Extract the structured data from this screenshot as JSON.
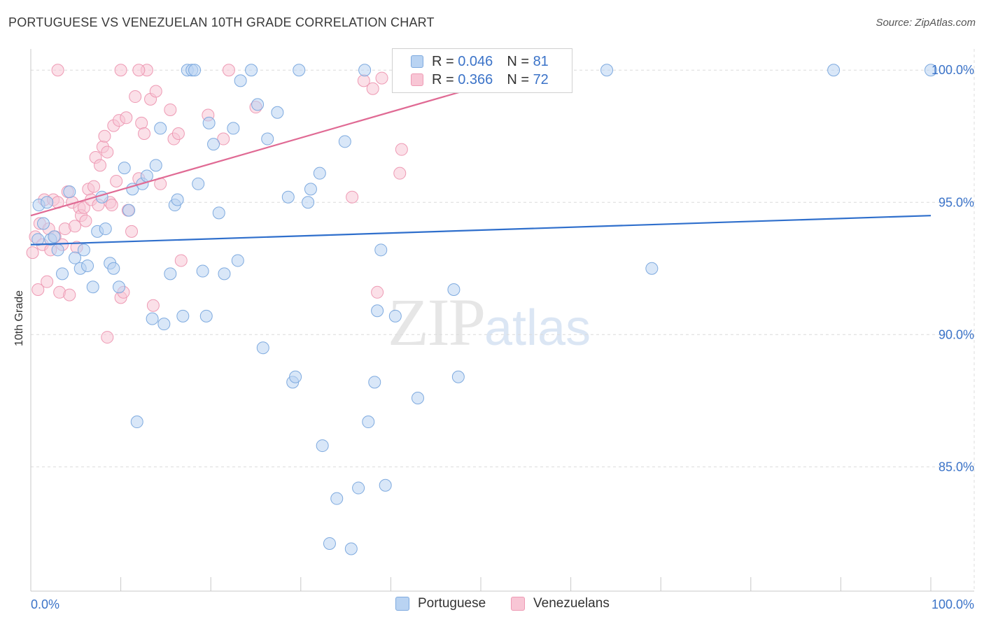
{
  "header": {
    "title": "PORTUGUESE VS VENEZUELAN 10TH GRADE CORRELATION CHART",
    "source": "Source: ZipAtlas.com"
  },
  "watermark": {
    "zip": "ZIP",
    "atlas": "atlas"
  },
  "legend": {
    "rows": [
      {
        "r_label": "R =",
        "r_value": "0.046",
        "n_label": "N =",
        "n_value": "81"
      },
      {
        "r_label": "R =",
        "r_value": "0.366",
        "n_label": "N =",
        "n_value": "72"
      }
    ],
    "bottom": [
      "Portuguese",
      "Venezuelans"
    ]
  },
  "colors": {
    "portuguese_fill": "#b9d3f2",
    "portuguese_stroke": "#7eaadf",
    "portuguese_line": "#2f6fcc",
    "venezuelan_fill": "#f8c6d5",
    "venezuelan_stroke": "#ee9ab4",
    "venezuelan_line": "#e06a94",
    "tick_label": "#3b73c8",
    "grid": "#dcdcdc"
  },
  "chart_data": {
    "type": "scatter",
    "title": "PORTUGUESE VS VENEZUELAN 10TH GRADE CORRELATION CHART",
    "xlabel": "",
    "ylabel": "10th Grade",
    "xlim": [
      0,
      100
    ],
    "ylim": [
      80.3,
      100.8
    ],
    "x_tick_labels": [
      "0.0%",
      "100.0%"
    ],
    "y_ticks": [
      85,
      90,
      95,
      100
    ],
    "y_tick_labels": [
      "85.0%",
      "90.0%",
      "95.0%",
      "100.0%"
    ],
    "grid": true,
    "series": [
      {
        "name": "Portuguese",
        "r": 0.046,
        "n": 81,
        "trend": {
          "x": [
            0,
            100
          ],
          "y": [
            93.4,
            94.5
          ]
        },
        "points": [
          [
            0.8,
            93.6
          ],
          [
            0.9,
            94.9
          ],
          [
            1.4,
            94.2
          ],
          [
            1.8,
            95.0
          ],
          [
            2.2,
            93.6
          ],
          [
            2.6,
            93.7
          ],
          [
            3.0,
            93.2
          ],
          [
            3.5,
            92.3
          ],
          [
            4.3,
            95.4
          ],
          [
            4.9,
            92.9
          ],
          [
            5.5,
            92.5
          ],
          [
            5.9,
            93.2
          ],
          [
            6.3,
            92.6
          ],
          [
            6.9,
            91.8
          ],
          [
            7.4,
            93.9
          ],
          [
            7.9,
            95.2
          ],
          [
            8.3,
            94.0
          ],
          [
            8.8,
            92.7
          ],
          [
            9.2,
            92.5
          ],
          [
            9.8,
            91.8
          ],
          [
            10.4,
            96.3
          ],
          [
            10.9,
            94.7
          ],
          [
            11.3,
            95.5
          ],
          [
            11.8,
            86.7
          ],
          [
            12.4,
            95.7
          ],
          [
            12.9,
            96.0
          ],
          [
            13.5,
            90.6
          ],
          [
            13.9,
            96.4
          ],
          [
            14.4,
            97.8
          ],
          [
            14.8,
            90.4
          ],
          [
            15.5,
            92.3
          ],
          [
            16.0,
            94.9
          ],
          [
            16.3,
            95.1
          ],
          [
            16.9,
            90.7
          ],
          [
            17.4,
            100.0
          ],
          [
            17.9,
            100.0
          ],
          [
            18.6,
            95.7
          ],
          [
            19.1,
            92.4
          ],
          [
            19.5,
            90.7
          ],
          [
            19.8,
            98.0
          ],
          [
            20.3,
            97.2
          ],
          [
            20.9,
            94.6
          ],
          [
            21.5,
            92.3
          ],
          [
            22.5,
            97.8
          ],
          [
            23.0,
            92.8
          ],
          [
            23.3,
            99.6
          ],
          [
            24.5,
            100.0
          ],
          [
            25.2,
            98.7
          ],
          [
            25.8,
            89.5
          ],
          [
            26.3,
            97.4
          ],
          [
            27.4,
            98.4
          ],
          [
            28.6,
            95.2
          ],
          [
            29.1,
            88.2
          ],
          [
            29.4,
            88.4
          ],
          [
            29.8,
            100.0
          ],
          [
            30.8,
            95.0
          ],
          [
            31.1,
            95.5
          ],
          [
            32.1,
            96.1
          ],
          [
            32.4,
            85.8
          ],
          [
            34.0,
            83.8
          ],
          [
            34.9,
            97.3
          ],
          [
            35.6,
            81.9
          ],
          [
            36.4,
            84.2
          ],
          [
            37.1,
            100.0
          ],
          [
            37.5,
            86.7
          ],
          [
            38.2,
            88.2
          ],
          [
            38.5,
            90.9
          ],
          [
            38.9,
            93.2
          ],
          [
            39.4,
            84.3
          ],
          [
            40.5,
            90.7
          ],
          [
            43.0,
            87.6
          ],
          [
            44.5,
            100.0
          ],
          [
            47.0,
            91.7
          ],
          [
            47.5,
            88.4
          ],
          [
            50.4,
            100.0
          ],
          [
            64.0,
            100.0
          ],
          [
            69.0,
            92.5
          ],
          [
            89.2,
            100.0
          ],
          [
            100.0,
            100.0
          ],
          [
            33.2,
            82.1
          ],
          [
            18.2,
            100.0
          ]
        ]
      },
      {
        "name": "Venezuelans",
        "r": 0.366,
        "n": 72,
        "trend": {
          "x": [
            0,
            49
          ],
          "y": [
            94.5,
            99.3
          ]
        },
        "points": [
          [
            0.2,
            93.1
          ],
          [
            0.5,
            93.7
          ],
          [
            0.8,
            91.7
          ],
          [
            1.0,
            94.2
          ],
          [
            1.3,
            93.4
          ],
          [
            1.5,
            95.1
          ],
          [
            1.8,
            92.0
          ],
          [
            2.0,
            94.0
          ],
          [
            2.2,
            93.2
          ],
          [
            2.5,
            95.1
          ],
          [
            2.7,
            93.7
          ],
          [
            3.0,
            95.0
          ],
          [
            3.2,
            91.6
          ],
          [
            3.5,
            93.4
          ],
          [
            3.8,
            94.0
          ],
          [
            4.1,
            95.4
          ],
          [
            4.3,
            91.5
          ],
          [
            4.6,
            95.0
          ],
          [
            4.9,
            94.1
          ],
          [
            5.1,
            93.3
          ],
          [
            5.4,
            94.8
          ],
          [
            5.6,
            94.5
          ],
          [
            5.9,
            94.8
          ],
          [
            6.1,
            94.3
          ],
          [
            6.4,
            95.5
          ],
          [
            6.7,
            95.1
          ],
          [
            7.0,
            95.6
          ],
          [
            7.2,
            96.7
          ],
          [
            7.5,
            94.9
          ],
          [
            7.7,
            96.4
          ],
          [
            8.0,
            97.1
          ],
          [
            8.2,
            97.5
          ],
          [
            8.5,
            96.9
          ],
          [
            8.8,
            95.0
          ],
          [
            9.0,
            94.9
          ],
          [
            9.2,
            97.9
          ],
          [
            9.5,
            95.8
          ],
          [
            9.8,
            98.1
          ],
          [
            10.0,
            91.4
          ],
          [
            10.3,
            91.6
          ],
          [
            10.6,
            98.2
          ],
          [
            10.8,
            94.7
          ],
          [
            11.2,
            93.9
          ],
          [
            11.6,
            99.0
          ],
          [
            12.0,
            95.9
          ],
          [
            12.3,
            98.0
          ],
          [
            12.6,
            97.6
          ],
          [
            12.9,
            100.0
          ],
          [
            13.3,
            98.9
          ],
          [
            13.6,
            91.1
          ],
          [
            13.9,
            99.2
          ],
          [
            14.4,
            95.7
          ],
          [
            15.5,
            98.5
          ],
          [
            15.9,
            97.4
          ],
          [
            16.4,
            97.6
          ],
          [
            16.7,
            92.8
          ],
          [
            19.7,
            98.3
          ],
          [
            21.4,
            97.4
          ],
          [
            22.0,
            100.0
          ],
          [
            25.0,
            98.6
          ],
          [
            35.7,
            95.2
          ],
          [
            37.0,
            99.6
          ],
          [
            38.0,
            99.3
          ],
          [
            38.5,
            91.6
          ],
          [
            39.0,
            99.7
          ],
          [
            41.0,
            96.1
          ],
          [
            41.2,
            97.0
          ],
          [
            41.6,
            100.0
          ],
          [
            8.5,
            89.9
          ],
          [
            3.0,
            100.0
          ],
          [
            10.0,
            100.0
          ],
          [
            12.0,
            100.0
          ]
        ]
      }
    ]
  }
}
